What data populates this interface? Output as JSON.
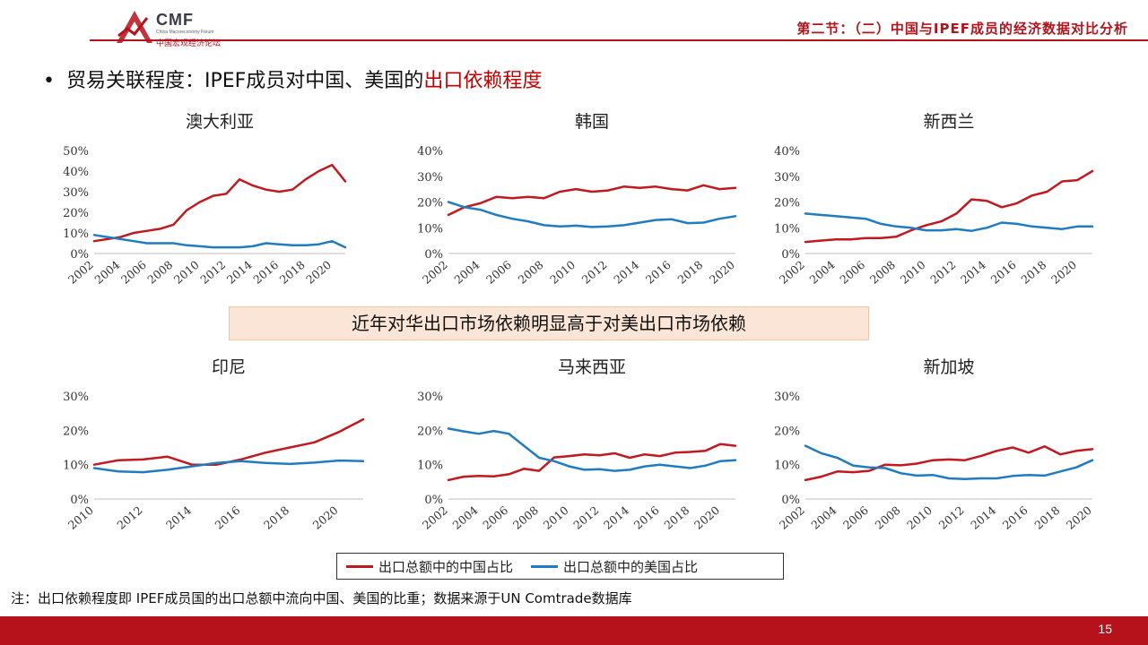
{
  "header": {
    "logo_name": "CMF",
    "logo_en": "China Macroeconomy Forum",
    "logo_cn": "中国宏观经济论坛",
    "section": "第二节：（二）中国与IPEF成员的经济数据对比分析"
  },
  "title": {
    "bullet": "•",
    "prefix": "贸易关联程度：IPEF成员对中国、美国的",
    "highlight": "出口依赖程度"
  },
  "banner": "近年对华出口市场依赖明显高于对美出口市场依赖",
  "legend": {
    "china": "出口总额中的中国占比",
    "us": "出口总额中的美国占比"
  },
  "note": "注：出口依赖程度即 IPEF成员国的出口总额中流向中国、美国的比重；数据来源于UN Comtrade数据库",
  "page_number": "15",
  "colors": {
    "china": "#c0191f",
    "us": "#1f7cc2",
    "brand": "#b5121b"
  },
  "chart_data": [
    {
      "type": "line",
      "title": "澳大利亚",
      "x": [
        2002,
        2003,
        2004,
        2005,
        2006,
        2007,
        2008,
        2009,
        2010,
        2011,
        2012,
        2013,
        2014,
        2015,
        2016,
        2017,
        2018,
        2019,
        2020,
        2021
      ],
      "xticks": [
        "2002",
        "2004",
        "2006",
        "2008",
        "2010",
        "2012",
        "2014",
        "2016",
        "2018",
        "2020"
      ],
      "ylim": [
        0,
        0.5
      ],
      "yticks": [
        "0%",
        "10%",
        "20%",
        "30%",
        "40%",
        "50%"
      ],
      "series": [
        {
          "name": "出口总额中的中国占比",
          "values": [
            0.06,
            0.07,
            0.08,
            0.1,
            0.11,
            0.12,
            0.14,
            0.21,
            0.25,
            0.28,
            0.29,
            0.36,
            0.33,
            0.31,
            0.3,
            0.31,
            0.36,
            0.4,
            0.43,
            0.35
          ]
        },
        {
          "name": "出口总额中的美国占比",
          "values": [
            0.09,
            0.08,
            0.07,
            0.06,
            0.05,
            0.05,
            0.05,
            0.04,
            0.035,
            0.03,
            0.03,
            0.03,
            0.035,
            0.05,
            0.045,
            0.04,
            0.04,
            0.045,
            0.06,
            0.03
          ]
        }
      ]
    },
    {
      "type": "line",
      "title": "韩国",
      "x": [
        2002,
        2003,
        2004,
        2005,
        2006,
        2007,
        2008,
        2009,
        2010,
        2011,
        2012,
        2013,
        2014,
        2015,
        2016,
        2017,
        2018,
        2019,
        2020
      ],
      "xticks": [
        "2002",
        "2004",
        "2006",
        "2008",
        "2010",
        "2012",
        "2014",
        "2016",
        "2018",
        "2020"
      ],
      "ylim": [
        0,
        0.4
      ],
      "yticks": [
        "0%",
        "10%",
        "20%",
        "30%",
        "40%"
      ],
      "series": [
        {
          "name": "出口总额中的中国占比",
          "values": [
            0.15,
            0.18,
            0.195,
            0.22,
            0.215,
            0.22,
            0.215,
            0.24,
            0.25,
            0.24,
            0.245,
            0.26,
            0.255,
            0.26,
            0.25,
            0.245,
            0.265,
            0.25,
            0.255
          ]
        },
        {
          "name": "出口总额中的美国占比",
          "values": [
            0.2,
            0.18,
            0.17,
            0.15,
            0.135,
            0.125,
            0.11,
            0.105,
            0.108,
            0.103,
            0.105,
            0.11,
            0.12,
            0.13,
            0.133,
            0.118,
            0.12,
            0.135,
            0.145
          ]
        }
      ]
    },
    {
      "type": "line",
      "title": "新西兰",
      "x": [
        2002,
        2003,
        2004,
        2005,
        2006,
        2007,
        2008,
        2009,
        2010,
        2011,
        2012,
        2013,
        2014,
        2015,
        2016,
        2017,
        2018,
        2019,
        2020,
        2021
      ],
      "xticks": [
        "2002",
        "2004",
        "2006",
        "2008",
        "2010",
        "2012",
        "2014",
        "2016",
        "2018",
        "2020"
      ],
      "ylim": [
        0,
        0.4
      ],
      "yticks": [
        "0%",
        "10%",
        "20%",
        "30%",
        "40%"
      ],
      "series": [
        {
          "name": "出口总额中的中国占比",
          "values": [
            0.045,
            0.05,
            0.055,
            0.055,
            0.06,
            0.06,
            0.065,
            0.09,
            0.11,
            0.125,
            0.155,
            0.21,
            0.205,
            0.18,
            0.195,
            0.225,
            0.24,
            0.28,
            0.285,
            0.32
          ]
        },
        {
          "name": "出口总额中的美国占比",
          "values": [
            0.155,
            0.15,
            0.145,
            0.14,
            0.135,
            0.115,
            0.105,
            0.1,
            0.09,
            0.09,
            0.095,
            0.088,
            0.1,
            0.12,
            0.115,
            0.105,
            0.1,
            0.095,
            0.105,
            0.105
          ]
        }
      ]
    },
    {
      "type": "line",
      "title": "印尼",
      "x": [
        2010,
        2011,
        2012,
        2013,
        2014,
        2015,
        2016,
        2017,
        2018,
        2019,
        2020,
        2021
      ],
      "xticks": [
        "2010",
        "2012",
        "2014",
        "2016",
        "2018",
        "2020"
      ],
      "ylim": [
        0,
        0.3
      ],
      "yticks": [
        "0%",
        "10%",
        "20%",
        "30%"
      ],
      "series": [
        {
          "name": "出口总额中的中国占比",
          "values": [
            0.1,
            0.113,
            0.115,
            0.123,
            0.1,
            0.1,
            0.115,
            0.135,
            0.15,
            0.165,
            0.195,
            0.232
          ]
        },
        {
          "name": "出口总额中的美国占比",
          "values": [
            0.09,
            0.08,
            0.078,
            0.085,
            0.095,
            0.105,
            0.11,
            0.105,
            0.102,
            0.106,
            0.112,
            0.11
          ]
        }
      ]
    },
    {
      "type": "line",
      "title": "马来西亚",
      "x": [
        2002,
        2003,
        2004,
        2005,
        2006,
        2007,
        2008,
        2009,
        2010,
        2011,
        2012,
        2013,
        2014,
        2015,
        2016,
        2017,
        2018,
        2019,
        2020,
        2021
      ],
      "xticks": [
        "2002",
        "2004",
        "2006",
        "2008",
        "2010",
        "2012",
        "2014",
        "2016",
        "2018",
        "2020"
      ],
      "ylim": [
        0,
        0.3
      ],
      "yticks": [
        "0%",
        "10%",
        "20%",
        "30%"
      ],
      "series": [
        {
          "name": "出口总额中的中国占比",
          "values": [
            0.055,
            0.065,
            0.067,
            0.066,
            0.072,
            0.088,
            0.082,
            0.121,
            0.125,
            0.13,
            0.127,
            0.133,
            0.12,
            0.13,
            0.125,
            0.135,
            0.137,
            0.14,
            0.16,
            0.155
          ]
        },
        {
          "name": "出口总额中的美国占比",
          "values": [
            0.205,
            0.197,
            0.19,
            0.198,
            0.19,
            0.155,
            0.12,
            0.11,
            0.095,
            0.085,
            0.087,
            0.082,
            0.085,
            0.095,
            0.1,
            0.095,
            0.09,
            0.097,
            0.11,
            0.113
          ]
        }
      ]
    },
    {
      "type": "line",
      "title": "新加坡",
      "x": [
        2002,
        2003,
        2004,
        2005,
        2006,
        2007,
        2008,
        2009,
        2010,
        2011,
        2012,
        2013,
        2014,
        2015,
        2016,
        2017,
        2018,
        2019,
        2020
      ],
      "xticks": [
        "2002",
        "2004",
        "2006",
        "2008",
        "2010",
        "2012",
        "2014",
        "2016",
        "2018",
        "2020"
      ],
      "ylim": [
        0,
        0.3
      ],
      "yticks": [
        "0%",
        "10%",
        "20%",
        "30%"
      ],
      "series": [
        {
          "name": "出口总额中的中国占比",
          "values": [
            0.055,
            0.065,
            0.08,
            0.078,
            0.082,
            0.1,
            0.098,
            0.103,
            0.113,
            0.115,
            0.113,
            0.125,
            0.14,
            0.15,
            0.135,
            0.153,
            0.13,
            0.14,
            0.145
          ]
        },
        {
          "name": "出口总额中的美国占比",
          "values": [
            0.155,
            0.133,
            0.12,
            0.097,
            0.092,
            0.09,
            0.075,
            0.068,
            0.07,
            0.06,
            0.058,
            0.06,
            0.06,
            0.067,
            0.07,
            0.068,
            0.08,
            0.092,
            0.113
          ]
        }
      ]
    }
  ]
}
